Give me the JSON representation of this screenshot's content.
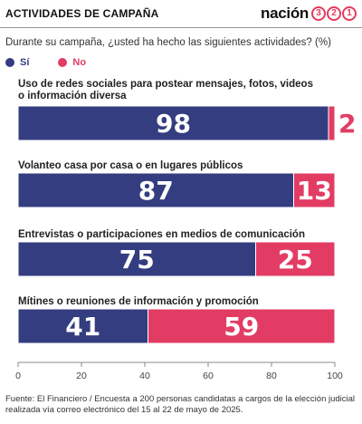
{
  "header": {
    "section_title": "ACTIVIDADES DE CAMPAÑA",
    "logo_word": "nación",
    "logo_digits": [
      "3",
      "2",
      "1"
    ]
  },
  "subtitle": "Durante su campaña, ¿usted ha hecho las siguientes actividades? (%)",
  "source": "Fuente: El Financiero / Encuesta a 200 personas candidatas a cargos de la elección judicial realizada vía correo electrónico del 15 al 22 de mayo de 2025.",
  "colors": {
    "si": "#333d80",
    "no": "#e23c64",
    "axis": "#888888",
    "text": "#222222"
  },
  "chart_data": {
    "type": "bar",
    "orientation": "horizontal",
    "stacked": true,
    "categories": [
      [
        "Uso de redes sociales para postear mensajes, fotos, videos",
        "o información diversa"
      ],
      [
        "Volanteo casa por casa o en lugares públicos"
      ],
      [
        "Entrevistas o participaciones en medios de comunicación"
      ],
      [
        "Mítines o reuniones de información y promoción"
      ]
    ],
    "series": [
      {
        "name": "Sí",
        "values": [
          98,
          87,
          75,
          41
        ]
      },
      {
        "name": "No",
        "values": [
          2,
          13,
          25,
          59
        ]
      }
    ],
    "xlim": [
      0,
      100
    ],
    "xticks": [
      0,
      20,
      40,
      60,
      80,
      100
    ],
    "legend_position": "top-left",
    "grid": false
  }
}
